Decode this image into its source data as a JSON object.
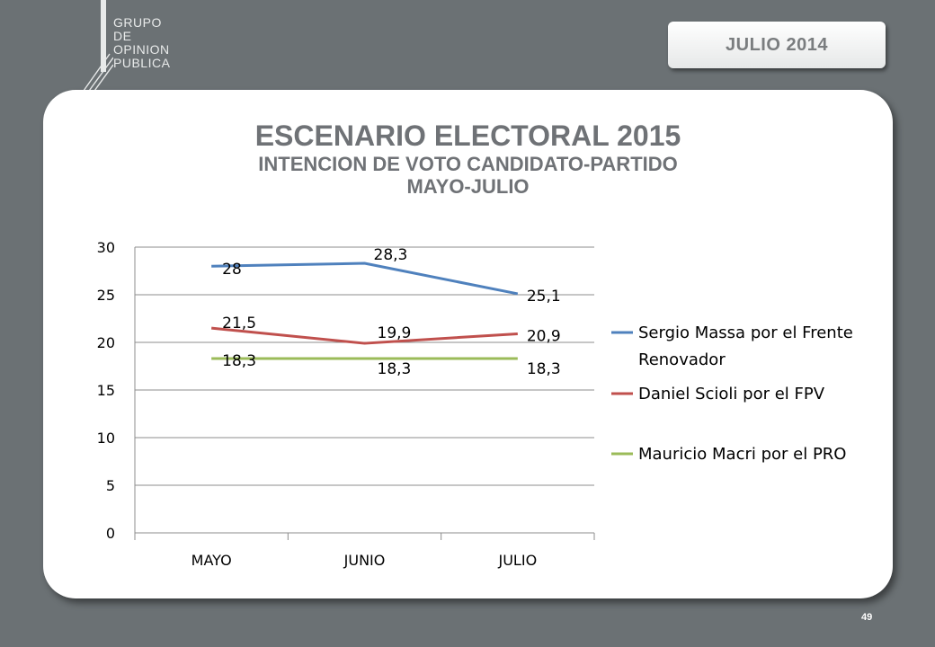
{
  "logo": {
    "lines": [
      "GRUPO",
      "DE",
      "OPINION",
      "PUBLICA"
    ]
  },
  "date_badge": "JULIO  2014",
  "page_number": "49",
  "chart_data": {
    "type": "line",
    "title": "ESCENARIO ELECTORAL 2015",
    "subtitle": "INTENCION DE VOTO CANDIDATO-PARTIDO",
    "subtitle2": "MAYO-JULIO",
    "categories": [
      "MAYO",
      "JUNIO",
      "JULIO"
    ],
    "ylim": [
      0,
      30
    ],
    "yticks": [
      0,
      5,
      10,
      15,
      20,
      25,
      30
    ],
    "grid": true,
    "legend_position": "right",
    "series": [
      {
        "name": "Sergio Massa por el Frente Renovador",
        "legend_lines": [
          "Sergio Massa por el Frente",
          "Renovador"
        ],
        "values": [
          28,
          28.3,
          25.1
        ],
        "labels": [
          "28",
          "28,3",
          "25,1"
        ],
        "color": "#4f81bd"
      },
      {
        "name": "Daniel Scioli por el FPV",
        "legend_lines": [
          "Daniel Scioli por el FPV"
        ],
        "values": [
          21.5,
          19.9,
          20.9
        ],
        "labels": [
          "21,5",
          "19,9",
          "20,9"
        ],
        "color": "#c0504d"
      },
      {
        "name": "Mauricio Macri por el PRO",
        "legend_lines": [
          "Mauricio Macri por el PRO"
        ],
        "values": [
          18.3,
          18.3,
          18.3
        ],
        "labels": [
          "18,3",
          "18,3",
          "18,3"
        ],
        "color": "#9bbb59"
      }
    ]
  }
}
